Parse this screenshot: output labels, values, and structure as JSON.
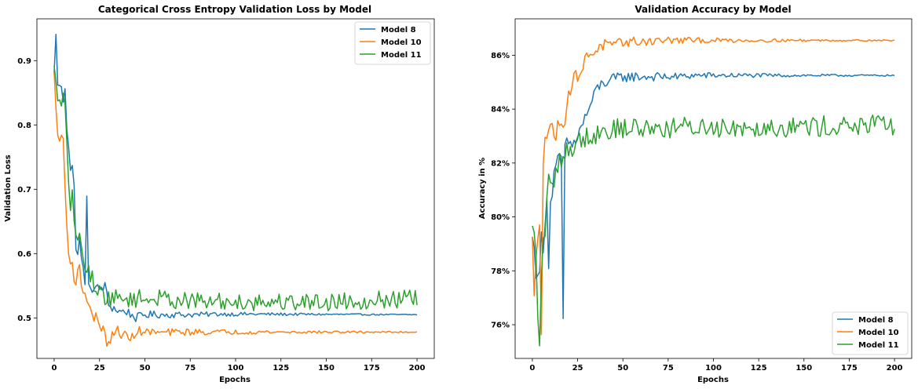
{
  "chart_data": [
    {
      "type": "line",
      "title": "Categorical Cross Entropy Validation Loss by Model",
      "xlabel": "Epochs",
      "ylabel": "Validation Loss",
      "xlim": [
        -9.5,
        209.5
      ],
      "ylim": [
        0.437,
        0.965
      ],
      "xticks": [
        0,
        25,
        50,
        75,
        100,
        125,
        150,
        175,
        200
      ],
      "yticks": [
        0.5,
        0.6,
        0.7,
        0.8,
        0.9
      ],
      "ytick_labels": [
        "0.5",
        "0.6",
        "0.7",
        "0.8",
        "0.9"
      ],
      "grid": false,
      "legend_position": "upper right",
      "series": [
        {
          "name": "Model 8",
          "color": "#1f77b4",
          "keypoints": [
            [
              0,
              0.88
            ],
            [
              1,
              0.943
            ],
            [
              2,
              0.86
            ],
            [
              3,
              0.865
            ],
            [
              5,
              0.84
            ],
            [
              6,
              0.862
            ],
            [
              7,
              0.8
            ],
            [
              8,
              0.77
            ],
            [
              9,
              0.73
            ],
            [
              10,
              0.733
            ],
            [
              11,
              0.7
            ],
            [
              12,
              0.615
            ],
            [
              13,
              0.6
            ],
            [
              14,
              0.62
            ],
            [
              15,
              0.59
            ],
            [
              16,
              0.575
            ],
            [
              17,
              0.56
            ],
            [
              18,
              0.683
            ],
            [
              19,
              0.545
            ],
            [
              20,
              0.55
            ],
            [
              22,
              0.545
            ],
            [
              25,
              0.545
            ],
            [
              28,
              0.55
            ],
            [
              30,
              0.52
            ],
            [
              33,
              0.515
            ],
            [
              36,
              0.51
            ],
            [
              40,
              0.51
            ],
            [
              45,
              0.5
            ],
            [
              50,
              0.505
            ],
            [
              60,
              0.505
            ],
            [
              70,
              0.505
            ],
            [
              80,
              0.505
            ],
            [
              90,
              0.506
            ],
            [
              200,
              0.505
            ]
          ],
          "amp_decay": [
            0.012,
            75
          ]
        },
        {
          "name": "Model 10",
          "color": "#ff7f0e",
          "keypoints": [
            [
              0,
              0.88
            ],
            [
              1,
              0.83
            ],
            [
              2,
              0.78
            ],
            [
              3,
              0.775
            ],
            [
              4,
              0.785
            ],
            [
              5,
              0.78
            ],
            [
              6,
              0.7
            ],
            [
              7,
              0.64
            ],
            [
              8,
              0.61
            ],
            [
              9,
              0.59
            ],
            [
              10,
              0.58
            ],
            [
              12,
              0.555
            ],
            [
              14,
              0.575
            ],
            [
              16,
              0.54
            ],
            [
              18,
              0.535
            ],
            [
              20,
              0.51
            ],
            [
              22,
              0.5
            ],
            [
              25,
              0.495
            ],
            [
              28,
              0.47
            ],
            [
              30,
              0.46
            ],
            [
              32,
              0.47
            ],
            [
              35,
              0.48
            ],
            [
              38,
              0.475
            ],
            [
              40,
              0.47
            ],
            [
              42,
              0.465
            ],
            [
              45,
              0.48
            ],
            [
              50,
              0.478
            ],
            [
              60,
              0.477
            ],
            [
              70,
              0.478
            ],
            [
              80,
              0.478
            ],
            [
              200,
              0.478
            ]
          ],
          "amp_decay": [
            0.014,
            75
          ]
        },
        {
          "name": "Model 11",
          "color": "#2ca02c",
          "keypoints": [
            [
              0,
              0.89
            ],
            [
              2,
              0.84
            ],
            [
              3,
              0.835
            ],
            [
              5,
              0.845
            ],
            [
              6,
              0.82
            ],
            [
              7,
              0.76
            ],
            [
              8,
              0.7
            ],
            [
              9,
              0.68
            ],
            [
              10,
              0.69
            ],
            [
              12,
              0.625
            ],
            [
              14,
              0.62
            ],
            [
              16,
              0.6
            ],
            [
              18,
              0.575
            ],
            [
              20,
              0.565
            ],
            [
              25,
              0.54
            ],
            [
              30,
              0.53
            ],
            [
              35,
              0.53
            ],
            [
              40,
              0.53
            ],
            [
              50,
              0.53
            ],
            [
              60,
              0.53
            ],
            [
              80,
              0.525
            ],
            [
              100,
              0.525
            ],
            [
              150,
              0.525
            ],
            [
              200,
              0.53
            ]
          ],
          "amp_decay": [
            0.014,
            1000000
          ]
        }
      ]
    },
    {
      "type": "line",
      "title": "Validation Accuracy by Model",
      "xlabel": "Epochs",
      "ylabel": "Accuracy in %",
      "xlim": [
        -9.5,
        209.5
      ],
      "ylim": [
        0.7475,
        0.8735
      ],
      "xticks": [
        0,
        25,
        50,
        75,
        100,
        125,
        150,
        175,
        200
      ],
      "yticks": [
        0.76,
        0.78,
        0.8,
        0.82,
        0.84,
        0.86
      ],
      "ytick_labels": [
        "76%",
        "78%",
        "80%",
        "82%",
        "84%",
        "86%"
      ],
      "grid": false,
      "legend_position": "lower right",
      "series": [
        {
          "name": "Model 8",
          "color": "#1f77b4",
          "keypoints": [
            [
              0,
              0.792
            ],
            [
              1,
              0.79
            ],
            [
              2,
              0.778
            ],
            [
              3,
              0.775
            ],
            [
              4,
              0.78
            ],
            [
              5,
              0.792
            ],
            [
              6,
              0.79
            ],
            [
              7,
              0.8
            ],
            [
              8,
              0.806
            ],
            [
              9,
              0.784
            ],
            [
              10,
              0.804
            ],
            [
              12,
              0.815
            ],
            [
              14,
              0.82
            ],
            [
              16,
              0.822
            ],
            [
              17,
              0.762
            ],
            [
              18,
              0.825
            ],
            [
              20,
              0.828
            ],
            [
              22,
              0.826
            ],
            [
              25,
              0.83
            ],
            [
              28,
              0.835
            ],
            [
              30,
              0.838
            ],
            [
              33,
              0.843
            ],
            [
              36,
              0.848
            ],
            [
              40,
              0.85
            ],
            [
              45,
              0.851
            ],
            [
              50,
              0.852
            ],
            [
              60,
              0.852
            ],
            [
              70,
              0.852
            ],
            [
              80,
              0.852
            ],
            [
              90,
              0.8525
            ],
            [
              200,
              0.8525
            ]
          ],
          "amp_decay": [
            0.004,
            75
          ]
        },
        {
          "name": "Model 10",
          "color": "#ff7f0e",
          "keypoints": [
            [
              0,
              0.792
            ],
            [
              1,
              0.77
            ],
            [
              2,
              0.785
            ],
            [
              3,
              0.795
            ],
            [
              4,
              0.8
            ],
            [
              5,
              0.76
            ],
            [
              6,
              0.82
            ],
            [
              7,
              0.83
            ],
            [
              9,
              0.83
            ],
            [
              11,
              0.835
            ],
            [
              13,
              0.83
            ],
            [
              15,
              0.835
            ],
            [
              18,
              0.837
            ],
            [
              20,
              0.845
            ],
            [
              22,
              0.85
            ],
            [
              25,
              0.853
            ],
            [
              28,
              0.855
            ],
            [
              30,
              0.86
            ],
            [
              35,
              0.862
            ],
            [
              40,
              0.864
            ],
            [
              45,
              0.863
            ],
            [
              50,
              0.865
            ],
            [
              60,
              0.865
            ],
            [
              70,
              0.8655
            ],
            [
              80,
              0.8655
            ],
            [
              100,
              0.8655
            ],
            [
              200,
              0.8655
            ]
          ],
          "amp_decay": [
            0.004,
            70
          ]
        },
        {
          "name": "Model 11",
          "color": "#2ca02c",
          "keypoints": [
            [
              0,
              0.796
            ],
            [
              1,
              0.794
            ],
            [
              2,
              0.786
            ],
            [
              3,
              0.765
            ],
            [
              4,
              0.75
            ],
            [
              5,
              0.78
            ],
            [
              6,
              0.79
            ],
            [
              7,
              0.79
            ],
            [
              8,
              0.81
            ],
            [
              9,
              0.815
            ],
            [
              10,
              0.81
            ],
            [
              12,
              0.812
            ],
            [
              14,
              0.82
            ],
            [
              16,
              0.822
            ],
            [
              18,
              0.823
            ],
            [
              20,
              0.825
            ],
            [
              25,
              0.828
            ],
            [
              30,
              0.83
            ],
            [
              40,
              0.832
            ],
            [
              50,
              0.833
            ],
            [
              75,
              0.833
            ],
            [
              100,
              0.8335
            ],
            [
              150,
              0.8335
            ],
            [
              200,
              0.834
            ]
          ],
          "amp_decay": [
            0.004,
            1000000
          ]
        }
      ]
    }
  ]
}
